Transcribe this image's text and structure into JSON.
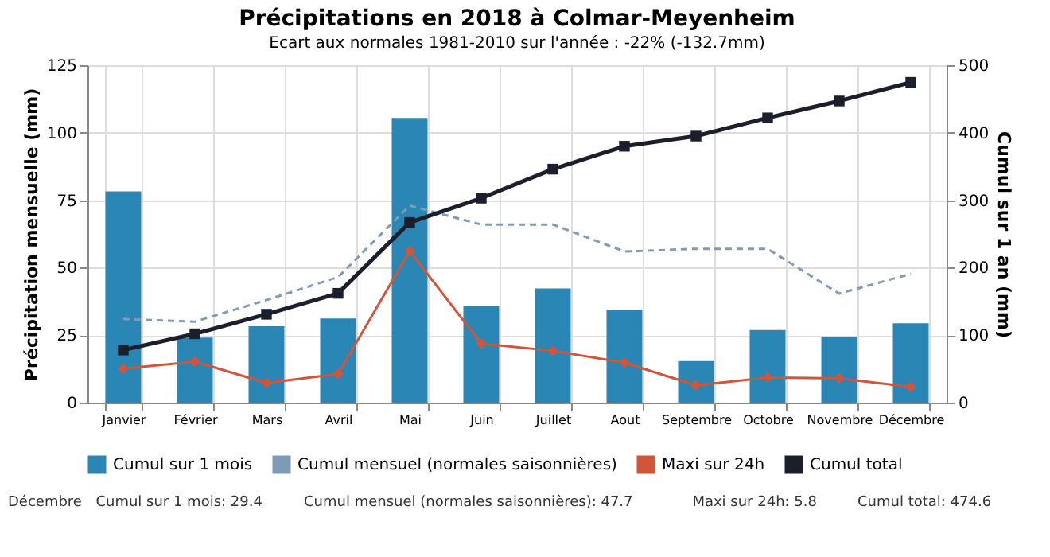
{
  "chart_data": {
    "type": "bar",
    "title": "Précipitations en 2018 à Colmar-Meyenheim",
    "subtitle": "Ecart aux normales 1981-2010 sur l'année : -22% (-132.7mm)",
    "ylabel": "Précipitation mensuelle (mm)",
    "y2label": "Cumul sur 1 an (mm)",
    "categories": [
      "Janvier",
      "Février",
      "Mars",
      "Avril",
      "Mai",
      "Juin",
      "Juillet",
      "Aout",
      "Septembre",
      "Octobre",
      "Novembre",
      "Décembre"
    ],
    "series": [
      {
        "name": "Cumul sur 1 mois",
        "color": "#2a86b4",
        "values": [
          78.3,
          24.1,
          28.3,
          31.2,
          105.5,
          35.8,
          42.3,
          34.4,
          15.4,
          26.9,
          24.3,
          29.4
        ]
      },
      {
        "name": "Cumul mensuel (normales saisonnières)",
        "type": "line",
        "color": "#7f9bb5",
        "line_style": "dashed",
        "marker": "none",
        "values": [
          31,
          30,
          38,
          46.5,
          73,
          66,
          66,
          56,
          57,
          57,
          40.4,
          47.7
        ]
      },
      {
        "name": "Maxi sur 24h",
        "type": "line",
        "color": "#d0553a",
        "marker": "diamond",
        "values": [
          12.6,
          15.2,
          7.3,
          10.6,
          56.2,
          21.9,
          19.2,
          14.8,
          6.4,
          9.3,
          9.0,
          5.8
        ]
      },
      {
        "name": "Cumul total",
        "type": "line",
        "color": "#1b1e2b",
        "marker": "square",
        "axis": "y2",
        "values": [
          78,
          102,
          131,
          162,
          267,
          303,
          346,
          380,
          395,
          422,
          447,
          474.6
        ]
      }
    ],
    "ylim": [
      0,
      125
    ],
    "yticks": [
      0,
      25,
      50,
      75,
      100,
      125
    ],
    "y2lim": [
      0,
      500
    ],
    "y2ticks": [
      0,
      100,
      200,
      300,
      400,
      500
    ],
    "grid": true,
    "legend": "bottom",
    "annotations": [
      "Décembre",
      "Cumul sur 1 mois: 29.4",
      "Cumul mensuel (normales saisonnières): 47.7",
      "Maxi sur 24h: 5.8",
      "Cumul total: 474.6"
    ]
  }
}
